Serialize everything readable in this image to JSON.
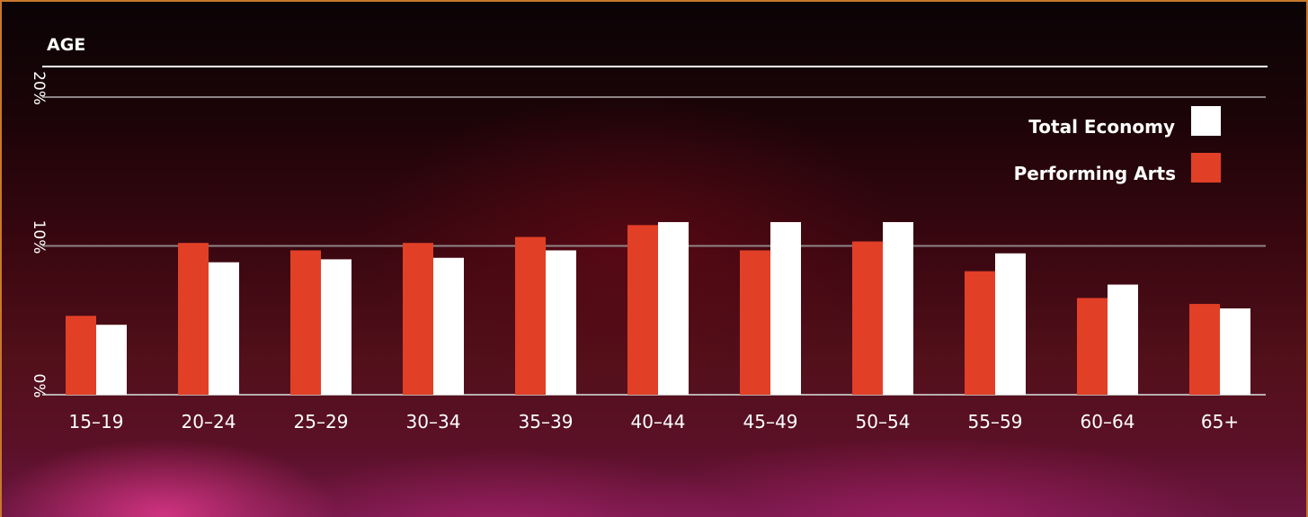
{
  "chart_data": {
    "type": "bar",
    "title": "AGE",
    "categories": [
      "15–19",
      "20–24",
      "25–29",
      "30–34",
      "35–39",
      "40–44",
      "45–49",
      "50–54",
      "55–59",
      "60–64",
      "65+"
    ],
    "series": [
      {
        "name": "Performing Arts",
        "color": "#e23f27",
        "values": [
          5.3,
          10.2,
          9.7,
          10.2,
          10.6,
          11.4,
          9.7,
          10.3,
          8.3,
          6.5,
          6.1
        ]
      },
      {
        "name": "Total Economy",
        "color": "#ffffff",
        "values": [
          4.7,
          8.9,
          9.1,
          9.2,
          9.7,
          11.6,
          11.6,
          11.6,
          9.5,
          7.4,
          5.8
        ]
      }
    ],
    "yticks": [
      "0%",
      "10%",
      "20%"
    ],
    "ylim": [
      0,
      20
    ],
    "grid": true,
    "legend": "top-right"
  }
}
